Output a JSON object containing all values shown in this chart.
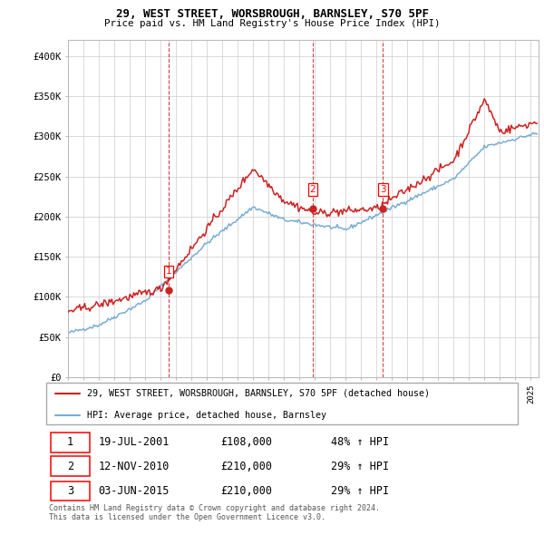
{
  "title": "29, WEST STREET, WORSBROUGH, BARNSLEY, S70 5PF",
  "subtitle": "Price paid vs. HM Land Registry's House Price Index (HPI)",
  "xlim_start": 1995.0,
  "xlim_end": 2025.5,
  "ylim": [
    0,
    420000
  ],
  "yticks": [
    0,
    50000,
    100000,
    150000,
    200000,
    250000,
    300000,
    350000,
    400000
  ],
  "ytick_labels": [
    "£0",
    "£50K",
    "£100K",
    "£150K",
    "£200K",
    "£250K",
    "£300K",
    "£350K",
    "£400K"
  ],
  "sale_dates": [
    2001.54,
    2010.87,
    2015.42
  ],
  "sale_prices": [
    108000,
    210000,
    210000
  ],
  "sale_labels": [
    "1",
    "2",
    "3"
  ],
  "hpi_color": "#7aadd4",
  "price_color": "#cc2222",
  "dashed_color": "#cc2222",
  "legend_label_price": "29, WEST STREET, WORSBROUGH, BARNSLEY, S70 5PF (detached house)",
  "legend_label_hpi": "HPI: Average price, detached house, Barnsley",
  "table_data": [
    [
      "1",
      "19-JUL-2001",
      "£108,000",
      "48% ↑ HPI"
    ],
    [
      "2",
      "12-NOV-2010",
      "£210,000",
      "29% ↑ HPI"
    ],
    [
      "3",
      "03-JUN-2015",
      "£210,000",
      "29% ↑ HPI"
    ]
  ],
  "footnote": "Contains HM Land Registry data © Crown copyright and database right 2024.\nThis data is licensed under the Open Government Licence v3.0.",
  "background_color": "#ffffff",
  "grid_color": "#cccccc"
}
